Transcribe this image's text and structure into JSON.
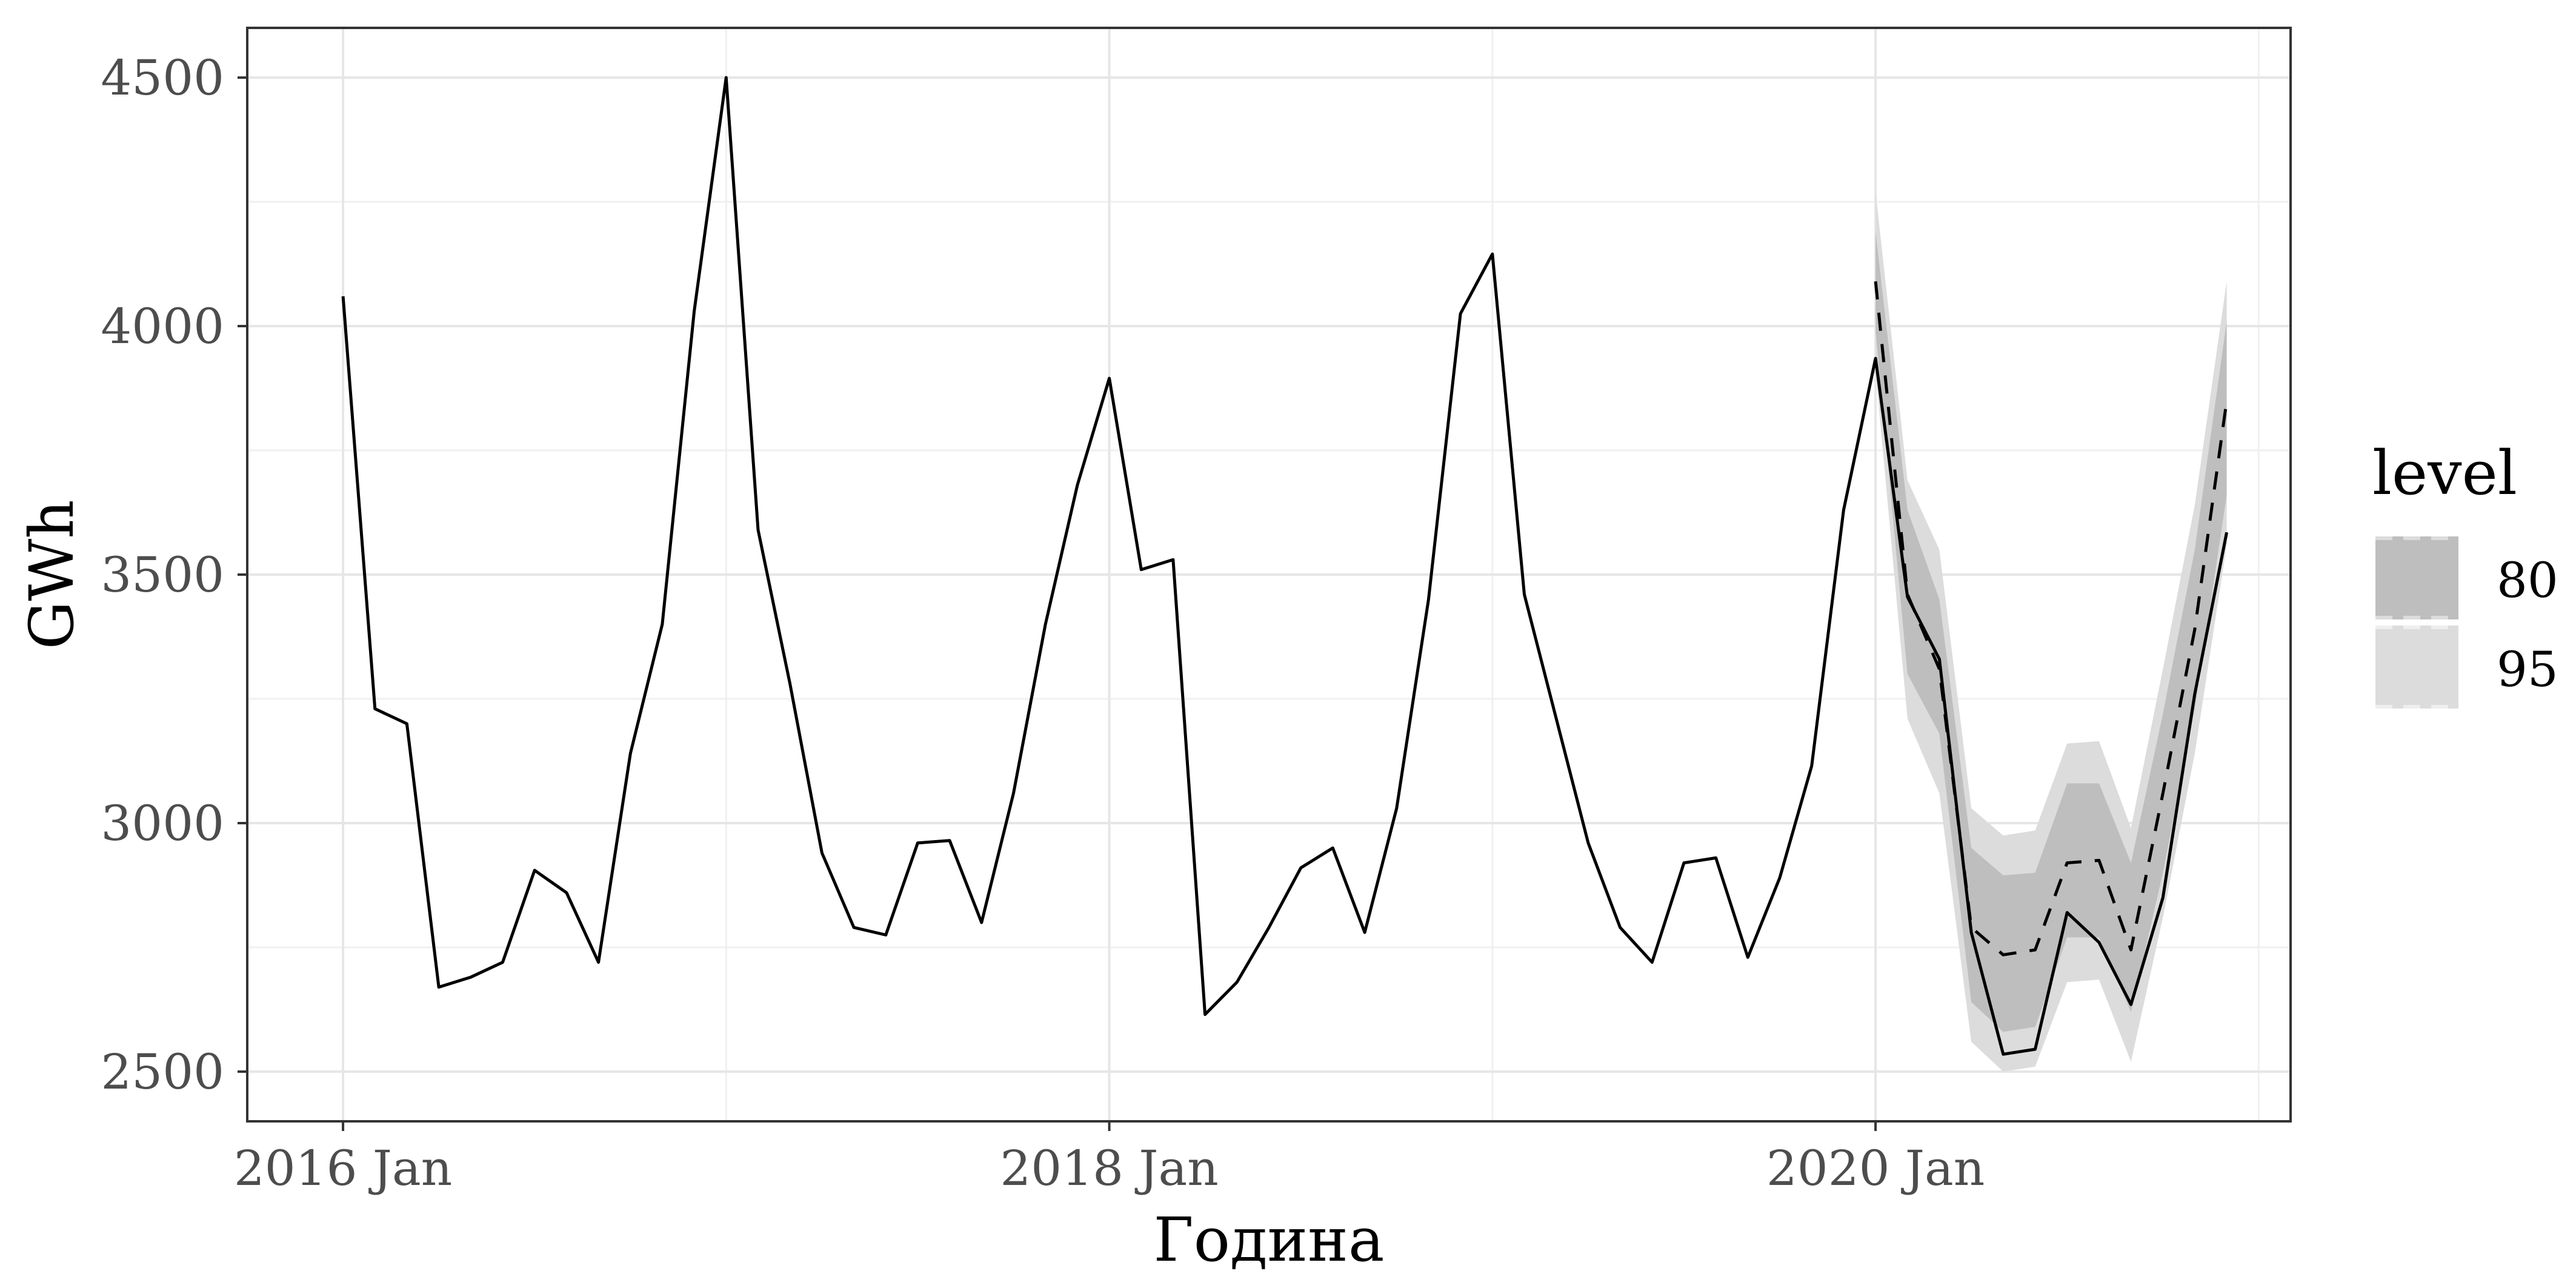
{
  "chart_data": {
    "type": "line",
    "title": "",
    "xlabel": "Година",
    "ylabel": "GWh",
    "x_ticks": [
      "2016 Jan",
      "2018 Jan",
      "2020 Jan"
    ],
    "y_ticks": [
      2500,
      3000,
      3500,
      4000,
      4500
    ],
    "xlim": [
      "2015-10",
      "2021-02"
    ],
    "ylim": [
      2400,
      4600
    ],
    "grid": true,
    "legend": {
      "title": "level",
      "placement": "right",
      "entries": [
        {
          "label": "80",
          "color": "#bebebe"
        },
        {
          "label": "95",
          "color": "#dcdcdc"
        }
      ]
    },
    "actual": {
      "start": "2016-01",
      "values": [
        4060,
        3230,
        3200,
        2670,
        2690,
        2720,
        2905,
        2860,
        2720,
        3140,
        3400,
        4030,
        4500,
        3590,
        3280,
        2940,
        2790,
        2775,
        2960,
        2965,
        2800,
        3060,
        3400,
        3680,
        3895,
        3510,
        3530,
        2615,
        2680,
        2790,
        2910,
        2950,
        2780,
        3030,
        3450,
        4025,
        4145,
        3460,
        3210,
        2960,
        2790,
        2720,
        2920,
        2930,
        2730,
        2890,
        3115,
        3630,
        3935,
        3455,
        3330,
        2780,
        2535,
        2545,
        2820,
        2760,
        2635,
        2850,
        3260,
        3585
      ]
    },
    "forecast": {
      "start": "2020-01",
      "mean": [
        4090,
        3460,
        3310,
        2790,
        2735,
        2745,
        2920,
        2925,
        2745,
        3060,
        3390,
        3850
      ],
      "lo80": [
        3990,
        3300,
        3180,
        2640,
        2580,
        2590,
        2770,
        2770,
        2620,
        2900,
        3230,
        3660
      ],
      "hi80": [
        4190,
        3630,
        3450,
        2950,
        2895,
        2900,
        3080,
        3080,
        2920,
        3220,
        3550,
        4010
      ],
      "lo95": [
        3910,
        3210,
        3060,
        2560,
        2500,
        2510,
        2680,
        2685,
        2520,
        2810,
        3140,
        3560
      ],
      "hi95": [
        4270,
        3690,
        3550,
        3030,
        2975,
        2985,
        3160,
        3165,
        2990,
        3310,
        3640,
        4090
      ]
    }
  }
}
